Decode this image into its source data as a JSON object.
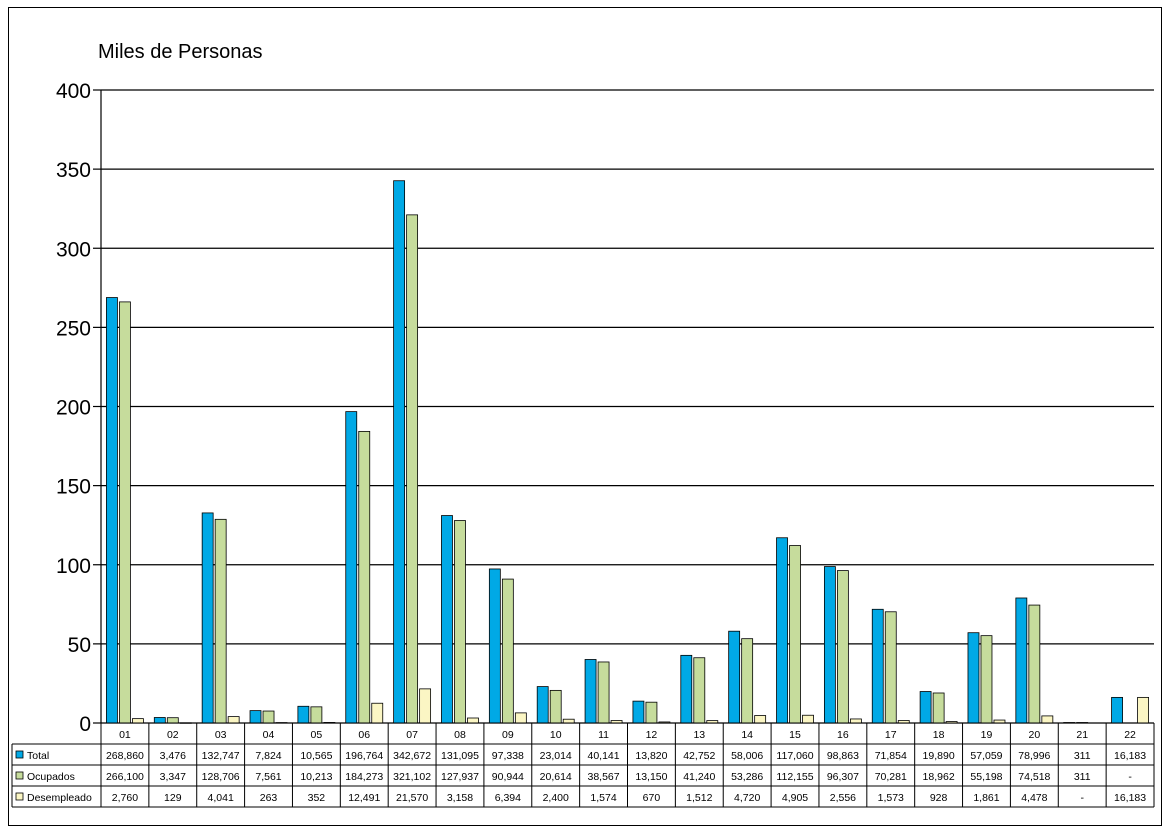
{
  "chart_data": {
    "type": "bar",
    "title": "Miles de Personas",
    "ylim": [
      0,
      400
    ],
    "yticks": [
      0,
      50,
      100,
      150,
      200,
      250,
      300,
      350,
      400
    ],
    "grid": true,
    "legend": "table-left",
    "categories": [
      "01",
      "02",
      "03",
      "04",
      "05",
      "06",
      "07",
      "08",
      "09",
      "10",
      "11",
      "12",
      "13",
      "14",
      "15",
      "16",
      "17",
      "18",
      "19",
      "20",
      "21",
      "22"
    ],
    "series": [
      {
        "name": "Total",
        "color": "#00a9e6",
        "values": [
          268.86,
          3.476,
          132.747,
          7.824,
          10.565,
          196.764,
          342.672,
          131.095,
          97.338,
          23.014,
          40.141,
          13.82,
          42.752,
          58.006,
          117.06,
          98.863,
          71.854,
          19.89,
          57.059,
          78.996,
          0.311,
          16.183
        ],
        "labels": [
          "268,860",
          "3,476",
          "132,747",
          "7,824",
          "10,565",
          "196,764",
          "342,672",
          "131,095",
          "97,338",
          "23,014",
          "40,141",
          "13,820",
          "42,752",
          "58,006",
          "117,060",
          "98,863",
          "71,854",
          "19,890",
          "57,059",
          "78,996",
          "311",
          "16,183"
        ]
      },
      {
        "name": "Ocupados",
        "color": "#c6dc9c",
        "values": [
          266.1,
          3.347,
          128.706,
          7.561,
          10.213,
          184.273,
          321.102,
          127.937,
          90.944,
          20.614,
          38.567,
          13.15,
          41.24,
          53.286,
          112.155,
          96.307,
          70.281,
          18.962,
          55.198,
          74.518,
          0.311,
          0
        ],
        "labels": [
          "266,100",
          "3,347",
          "128,706",
          "7,561",
          "10,213",
          "184,273",
          "321,102",
          "127,937",
          "90,944",
          "20,614",
          "38,567",
          "13,150",
          "41,240",
          "53,286",
          "112,155",
          "96,307",
          "70,281",
          "18,962",
          "55,198",
          "74,518",
          "311",
          "-"
        ]
      },
      {
        "name": "Desempleado",
        "color": "#fbf6c4",
        "values": [
          2.76,
          0.129,
          4.041,
          0.263,
          0.352,
          12.491,
          21.57,
          3.158,
          6.394,
          2.4,
          1.574,
          0.67,
          1.512,
          4.72,
          4.905,
          2.556,
          1.573,
          0.928,
          1.861,
          4.478,
          0,
          16.183
        ],
        "labels": [
          "2,760",
          "129",
          "4,041",
          "263",
          "352",
          "12,491",
          "21,570",
          "3,158",
          "6,394",
          "2,400",
          "1,574",
          "670",
          "1,512",
          "4,720",
          "4,905",
          "2,556",
          "1,573",
          "928",
          "1,861",
          "4,478",
          "-",
          "16,183"
        ]
      }
    ]
  }
}
